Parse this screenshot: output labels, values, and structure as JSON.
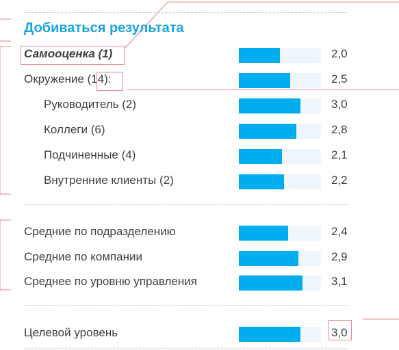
{
  "title": "Добиваться результата",
  "chart_data": {
    "type": "bar",
    "orientation": "horizontal",
    "xlim": [
      0,
      4
    ],
    "bar_color": "#00aeef",
    "track_color": "#eef6fb",
    "rows": [
      {
        "label": "Самооценка (1)",
        "value": 2.0,
        "value_label": "2,0",
        "emphasis": true
      },
      {
        "label": "Окружение (14):",
        "value": 2.5,
        "value_label": "2,5"
      },
      {
        "label": "Руководитель (2)",
        "value": 3.0,
        "value_label": "3,0"
      },
      {
        "label": "Коллеги (6)",
        "value": 2.8,
        "value_label": "2,8"
      },
      {
        "label": "Подчиненные (4)",
        "value": 2.1,
        "value_label": "2,1"
      },
      {
        "label": "Внутренние клиенты (2)",
        "value": 2.2,
        "value_label": "2,2"
      },
      {
        "label": "Средние по подразделению",
        "value": 2.4,
        "value_label": "2,4"
      },
      {
        "label": "Средние по компании",
        "value": 2.9,
        "value_label": "2,9"
      },
      {
        "label": "Среднее по уровню управления",
        "value": 3.1,
        "value_label": "3,1"
      },
      {
        "label": "Целевой уровень",
        "value": 3.0,
        "value_label": "3,0"
      }
    ]
  },
  "colors": {
    "title": "#1aa6dc",
    "text": "#404040",
    "annotation": "#e5848c"
  }
}
